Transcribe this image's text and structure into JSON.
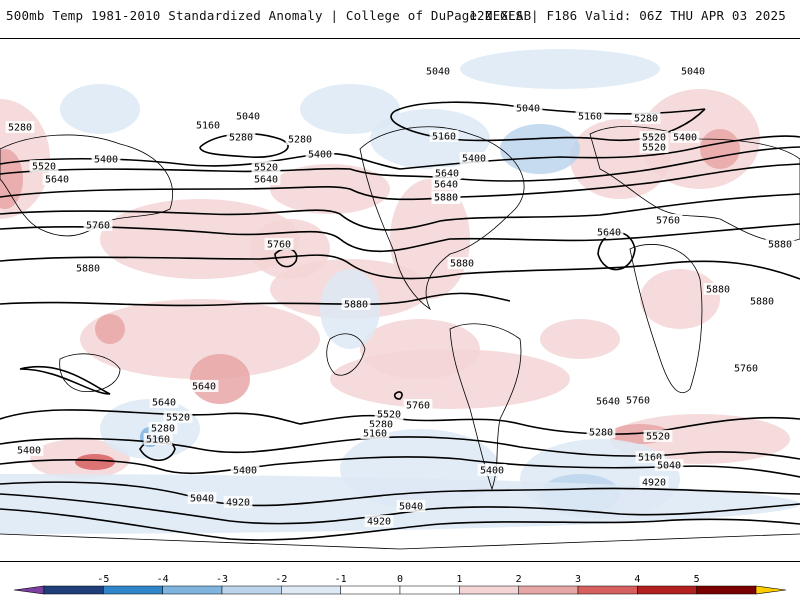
{
  "header": {
    "title_left": "500mb Temp 1981-2010 Standardized Anomaly | College of DuPage NEXLAB",
    "title_right": "12Z GFS | F186 Valid: 06Z THU APR 03 2025"
  },
  "colors": {
    "anomaly_scale": [
      "#7b3fa0",
      "#1f3f7a",
      "#2f86c8",
      "#7fb4df",
      "#bcd5ec",
      "#dde9f5",
      "#ffffff",
      "#ffffff",
      "#f3d5d5",
      "#e7a6a6",
      "#d66060",
      "#b22020",
      "#7a0000",
      "#ffcc00"
    ],
    "contour": "#000000",
    "coastline": "#000000"
  },
  "colorbar": {
    "ticks": [
      "-5",
      "-4",
      "-3",
      "-2",
      "-1",
      "0",
      "1",
      "2",
      "3",
      "4",
      "5"
    ]
  },
  "contour_labels": [
    "5040",
    "5040",
    "5040",
    "5040",
    "5160",
    "5280",
    "5160",
    "5160",
    "5280",
    "5280",
    "5280",
    "5520",
    "5400",
    "5400",
    "5400",
    "5520",
    "5640",
    "5640",
    "5640",
    "5520",
    "5400",
    "5520",
    "5640",
    "5760",
    "5760",
    "5640",
    "5760",
    "5880",
    "5760",
    "5880",
    "5880",
    "5880",
    "5880",
    "5880",
    "5880",
    "5760",
    "5640",
    "5520",
    "5280",
    "5160",
    "5400",
    "5640",
    "5520",
    "5280",
    "5160",
    "5760",
    "5640",
    "5760",
    "5520",
    "5280",
    "5160",
    "5040",
    "4920",
    "5400",
    "5040",
    "4920",
    "5040",
    "4920",
    "5400"
  ]
}
